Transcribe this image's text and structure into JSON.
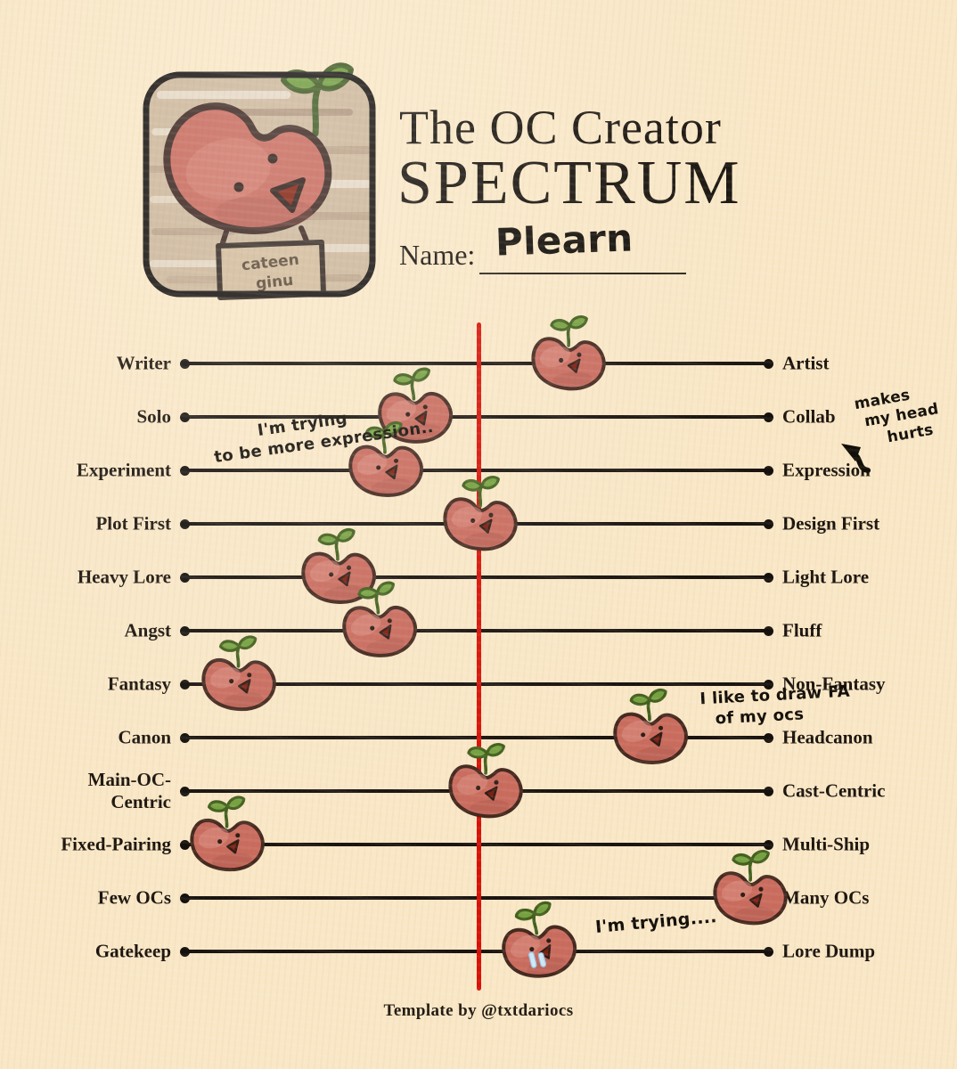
{
  "page": {
    "background_color": "#f9e7c6",
    "credit": "Template by @txtdariocs"
  },
  "header": {
    "title_line1": "The OC Creator",
    "title_line2": "SPECTRUM",
    "name_label": "Name:",
    "name_value": "Plearn",
    "avatar": {
      "character": "red heart-bean with green sprout",
      "sign_line1": "cateen",
      "sign_line2": "ginu"
    }
  },
  "colors": {
    "center_line": "#da1106",
    "track": "#1a1410",
    "bean_body": "#c96c5e",
    "bean_outline": "#45291f",
    "sprout_green": "#76a140",
    "tear_blue": "#cfe9f8"
  },
  "spectrum": {
    "rows": [
      {
        "left": "Writer",
        "right": "Artist",
        "position_pct": 66,
        "variant": "normal",
        "tilt": -4
      },
      {
        "left": "Solo",
        "right": "Collab",
        "position_pct": 40,
        "variant": "normal",
        "tilt": -10
      },
      {
        "left": "Experiment",
        "right": "Expression",
        "position_pct": 35,
        "variant": "normal",
        "tilt": -8
      },
      {
        "left": "Plot First",
        "right": "Design First",
        "position_pct": 51,
        "variant": "normal",
        "tilt": -4
      },
      {
        "left": "Heavy Lore",
        "right": "Light Lore",
        "position_pct": 27,
        "variant": "normal",
        "tilt": -8
      },
      {
        "left": "Angst",
        "right": "Fluff",
        "position_pct": 34,
        "variant": "normal",
        "tilt": -10
      },
      {
        "left": "Fantasy",
        "right": "Non-Fantasy",
        "position_pct": 10,
        "variant": "normal",
        "tilt": -6
      },
      {
        "left": "Canon",
        "right": "Headcanon",
        "position_pct": 80,
        "variant": "normal",
        "tilt": -8
      },
      {
        "left": "Main-OC-Centric",
        "right": "Cast-Centric",
        "position_pct": 52,
        "variant": "normal",
        "tilt": -4
      },
      {
        "left": "Fixed-Pairing",
        "right": "Multi-Ship",
        "position_pct": 8,
        "variant": "normal",
        "tilt": -6
      },
      {
        "left": "Few OCs",
        "right": "Many OCs",
        "position_pct": 97,
        "variant": "normal",
        "tilt": -4
      },
      {
        "left": "Gatekeep",
        "right": "Lore Dump",
        "position_pct": 61,
        "variant": "crying",
        "tilt": -14
      }
    ]
  },
  "annotations": [
    {
      "id": "expression-note",
      "lines": [
        "I'm trying",
        "to be more expression.."
      ]
    },
    {
      "id": "head-hurts-note",
      "lines": [
        "makes",
        "my head",
        "hurts"
      ]
    },
    {
      "id": "draw-fa-note",
      "lines": [
        "I like to draw FA",
        "of my ocs"
      ]
    },
    {
      "id": "trying-note",
      "lines": [
        "I'm trying...."
      ]
    }
  ]
}
